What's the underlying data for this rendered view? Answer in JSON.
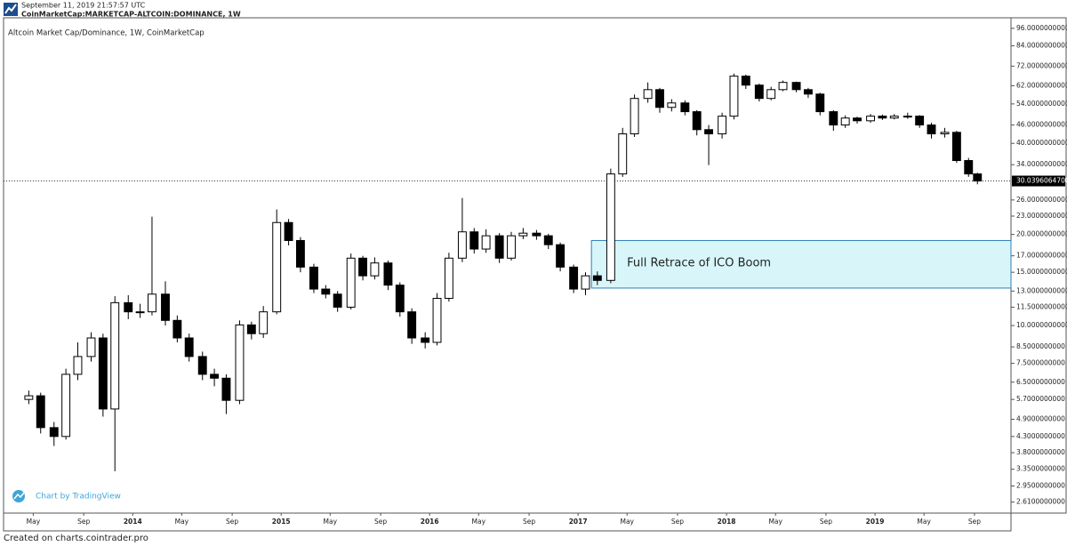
{
  "header": {
    "timestamp": "September 11, 2019 21:57:57 UTC",
    "symbol": "CoinMarketCap:MARKETCAP-ALTCOIN:DOMINANCE, 1W"
  },
  "chart_data": {
    "type": "candlestick",
    "title": "Altcoin Market Cap/Dominance, 1W, CoinMarketCap",
    "x": [
      2013.3,
      2013.38,
      2013.47,
      2013.55,
      2013.63,
      2013.72,
      2013.8,
      2013.88,
      2013.97,
      2014.05,
      2014.13,
      2014.22,
      2014.3,
      2014.38,
      2014.47,
      2014.55,
      2014.63,
      2014.72,
      2014.8,
      2014.88,
      2014.97,
      2015.05,
      2015.13,
      2015.22,
      2015.3,
      2015.38,
      2015.47,
      2015.55,
      2015.63,
      2015.72,
      2015.8,
      2015.88,
      2015.97,
      2016.05,
      2016.13,
      2016.22,
      2016.3,
      2016.38,
      2016.47,
      2016.55,
      2016.63,
      2016.72,
      2016.8,
      2016.88,
      2016.97,
      2017.05,
      2017.13,
      2017.22,
      2017.3,
      2017.38,
      2017.47,
      2017.55,
      2017.63,
      2017.72,
      2017.8,
      2017.88,
      2017.97,
      2018.05,
      2018.13,
      2018.22,
      2018.3,
      2018.38,
      2018.47,
      2018.55,
      2018.63,
      2018.72,
      2018.8,
      2018.88,
      2018.97,
      2019.05,
      2019.13,
      2019.22,
      2019.3,
      2019.38,
      2019.47,
      2019.55,
      2019.63,
      2019.69
    ],
    "open": [
      5.7,
      5.86,
      4.6,
      4.3,
      6.9,
      7.9,
      9.1,
      5.3,
      11.9,
      11.1,
      11.1,
      12.7,
      10.4,
      9.1,
      7.9,
      6.9,
      6.7,
      5.66,
      10.05,
      9.4,
      11.1,
      21.9,
      19.1,
      15.6,
      13.2,
      12.7,
      11.5,
      16.7,
      14.6,
      16.1,
      13.6,
      11.1,
      9.1,
      8.8,
      12.3,
      16.7,
      20.4,
      17.9,
      19.8,
      16.7,
      19.8,
      20.2,
      19.8,
      18.5,
      15.6,
      13.2,
      14.6,
      14.1,
      31.7,
      43.0,
      56.3,
      60.2,
      52.6,
      54.4,
      50.9,
      44.4,
      43.0,
      49.2,
      66.7,
      62.3,
      56.3,
      60.2,
      63.6,
      60.2,
      58.2,
      50.9,
      46.0,
      48.5,
      47.5,
      49.2,
      48.5,
      49.2,
      49.2,
      46.0,
      43.0,
      43.5,
      35.1,
      31.7
    ],
    "high": [
      6.1,
      6.0,
      4.8,
      7.2,
      8.8,
      9.5,
      9.4,
      12.5,
      12.6,
      11.8,
      22.9,
      14.0,
      10.8,
      9.4,
      8.2,
      7.2,
      6.9,
      10.4,
      10.3,
      11.6,
      24.2,
      22.5,
      19.6,
      16.0,
      13.6,
      13.0,
      17.3,
      17.0,
      16.8,
      16.4,
      13.9,
      11.4,
      9.5,
      12.8,
      17.4,
      26.4,
      21.0,
      20.8,
      20.2,
      20.4,
      21.0,
      20.7,
      20.1,
      18.8,
      15.9,
      15.0,
      15.1,
      33.0,
      45.0,
      58.0,
      63.6,
      61.0,
      56.0,
      55.5,
      51.5,
      46.0,
      50.5,
      68.0,
      67.5,
      63.0,
      61.5,
      64.5,
      64.0,
      61.0,
      58.8,
      51.5,
      49.5,
      49.0,
      50.0,
      49.8,
      50.0,
      50.5,
      49.6,
      46.8,
      45.0,
      44.0,
      35.8,
      32.0
    ],
    "low": [
      5.5,
      4.4,
      4.0,
      4.2,
      6.6,
      7.6,
      5.0,
      3.3,
      10.5,
      10.6,
      10.8,
      10.0,
      8.8,
      7.6,
      6.6,
      6.3,
      5.1,
      5.5,
      9.0,
      9.1,
      10.9,
      18.4,
      15.0,
      12.8,
      12.3,
      11.1,
      11.3,
      14.1,
      14.2,
      13.1,
      10.7,
      8.7,
      8.4,
      8.6,
      12.0,
      16.2,
      17.3,
      17.4,
      16.1,
      16.4,
      19.3,
      19.2,
      17.9,
      15.1,
      12.8,
      12.6,
      13.6,
      13.8,
      31.0,
      42.0,
      54.5,
      50.5,
      51.0,
      49.5,
      42.5,
      33.9,
      41.5,
      48.0,
      60.5,
      55.0,
      55.5,
      59.5,
      59.0,
      56.5,
      49.5,
      44.0,
      45.0,
      46.5,
      46.8,
      47.8,
      48.0,
      48.2,
      45.0,
      41.5,
      41.8,
      34.5,
      31.0,
      29.3
    ],
    "close": [
      5.86,
      4.6,
      4.3,
      6.9,
      7.9,
      9.1,
      5.3,
      11.9,
      11.1,
      11.1,
      12.7,
      10.4,
      9.1,
      7.9,
      6.9,
      6.7,
      5.66,
      10.05,
      9.4,
      11.1,
      21.9,
      19.1,
      15.6,
      13.2,
      12.7,
      11.5,
      16.7,
      14.6,
      16.1,
      13.6,
      11.1,
      9.1,
      8.8,
      12.3,
      16.7,
      20.4,
      17.9,
      19.8,
      16.7,
      19.8,
      20.2,
      19.8,
      18.5,
      15.6,
      13.2,
      14.6,
      14.1,
      31.7,
      43.0,
      56.3,
      60.2,
      52.6,
      54.4,
      50.9,
      44.4,
      43.0,
      49.2,
      66.7,
      62.3,
      56.3,
      60.2,
      63.6,
      60.2,
      58.2,
      50.9,
      46.0,
      48.5,
      47.5,
      49.2,
      48.5,
      49.2,
      49.2,
      46.0,
      43.0,
      43.5,
      35.1,
      31.7,
      30.04
    ],
    "up_color": "#ffffff",
    "down_color": "#000000",
    "log_scale": true,
    "grid": false,
    "xlim": [
      2013.13,
      2019.916
    ],
    "ylim": [
      2.4,
      104
    ],
    "xticks": [
      {
        "value": 2013.33,
        "label": "May"
      },
      {
        "value": 2013.67,
        "label": "Sep"
      },
      2014,
      {
        "value": 2014.33,
        "label": "May"
      },
      {
        "value": 2014.67,
        "label": "Sep"
      },
      2015,
      {
        "value": 2015.33,
        "label": "May"
      },
      {
        "value": 2015.67,
        "label": "Sep"
      },
      2016,
      {
        "value": 2016.33,
        "label": "May"
      },
      {
        "value": 2016.67,
        "label": "Sep"
      },
      2017,
      {
        "value": 2017.33,
        "label": "May"
      },
      {
        "value": 2017.67,
        "label": "Sep"
      },
      2018,
      {
        "value": 2018.33,
        "label": "May"
      },
      {
        "value": 2018.67,
        "label": "Sep"
      },
      2019,
      {
        "value": 2019.33,
        "label": "May"
      },
      {
        "value": 2019.67,
        "label": "Sep"
      }
    ],
    "yticks": [
      {
        "value": 96,
        "label": "96.0000000000"
      },
      {
        "value": 84,
        "label": "84.0000000000"
      },
      {
        "value": 72,
        "label": "72.0000000000"
      },
      {
        "value": 62,
        "label": "62.0000000000"
      },
      {
        "value": 54,
        "label": "54.0000000000"
      },
      {
        "value": 46,
        "label": "46.0000000000"
      },
      {
        "value": 40,
        "label": "40.0000000000"
      },
      {
        "value": 34,
        "label": "34.0000000000"
      },
      {
        "value": 26,
        "label": "26.0000000000"
      },
      {
        "value": 23,
        "label": "23.0000000000"
      },
      {
        "value": 20,
        "label": "20.0000000000"
      },
      {
        "value": 17,
        "label": "17.0000000000"
      },
      {
        "value": 15,
        "label": "15.0000000000"
      },
      {
        "value": 13,
        "label": "13.0000000000"
      },
      {
        "value": 11.5,
        "label": "11.5000000000"
      },
      {
        "value": 10,
        "label": "10.0000000000"
      },
      {
        "value": 8.5,
        "label": "8.5000000000"
      },
      {
        "value": 7.5,
        "label": "7.5000000000"
      },
      {
        "value": 6.5,
        "label": "6.5000000000"
      },
      {
        "value": 5.7,
        "label": "5.7000000000"
      },
      {
        "value": 4.9,
        "label": "4.9000000000"
      },
      {
        "value": 4.3,
        "label": "4.3000000000"
      },
      {
        "value": 3.8,
        "label": "3.8000000000"
      },
      {
        "value": 3.35,
        "label": "3.3500000000"
      },
      {
        "value": 2.95,
        "label": "2.9500000000"
      },
      {
        "value": 2.61,
        "label": "2.6100000000"
      }
    ],
    "last_value": {
      "value": 30.03960647,
      "label": "30.0396064700"
    },
    "annotation": {
      "text": "Full Retrace of ICO Boom",
      "x_start": 2017.09,
      "y_range": [
        13.3,
        19.1
      ]
    }
  },
  "watermark": "Chart by TradingView",
  "footer": "Created on charts.cointrader.pro"
}
